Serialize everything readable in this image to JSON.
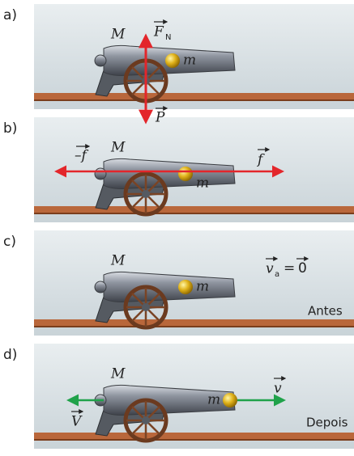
{
  "panels": [
    {
      "label": "a)",
      "cannon_mass": "M",
      "ball_mass": "m",
      "normal_force": {
        "symbol": "F",
        "subscript": "N"
      },
      "weight": "P"
    },
    {
      "label": "b)",
      "cannon_mass": "M",
      "ball_mass": "m",
      "left_force": "–f",
      "right_force": "f"
    },
    {
      "label": "c)",
      "cannon_mass": "M",
      "ball_mass": "m",
      "velocity": {
        "symbol": "v",
        "subscript": "a",
        "equals": "=",
        "zero": "0"
      },
      "caption": "Antes"
    },
    {
      "label": "d)",
      "cannon_mass": "M",
      "ball_mass": "m",
      "cannon_velocity": "V",
      "ball_velocity": "v",
      "caption": "Depois"
    }
  ]
}
